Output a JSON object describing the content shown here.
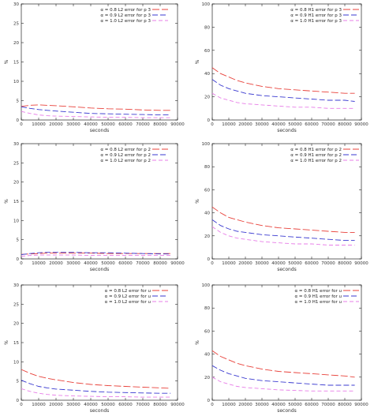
{
  "colors": {
    "red": "#e8413a",
    "blue": "#3a3ad0",
    "magenta": "#e77ce7"
  },
  "chart_data": [
    {
      "type": "line",
      "xlabel": "seconds",
      "ylabel": "%",
      "xlim": [
        0,
        90000
      ],
      "ylim": [
        0,
        30
      ],
      "xticks": [
        "0",
        "10000",
        "20000",
        "30000",
        "40000",
        "50000",
        "60000",
        "70000",
        "80000",
        "90000"
      ],
      "yticks": [
        "0",
        "5",
        "10",
        "15",
        "20",
        "25",
        "30"
      ],
      "legend_position": "top-right",
      "x": [
        0,
        5000,
        10000,
        15000,
        20000,
        30000,
        40000,
        50000,
        60000,
        70000,
        80000,
        86000
      ],
      "series": [
        {
          "name": "α = 0.8 L2 error for p 3",
          "color": "red",
          "values": [
            3.5,
            3.8,
            3.9,
            3.8,
            3.7,
            3.4,
            3.1,
            2.9,
            2.8,
            2.6,
            2.5,
            2.5
          ]
        },
        {
          "name": "α = 0.9 L2 error for p 3",
          "color": "blue",
          "values": [
            3.4,
            3.0,
            2.7,
            2.5,
            2.3,
            2.0,
            1.7,
            1.6,
            1.5,
            1.4,
            1.3,
            1.3
          ]
        },
        {
          "name": "α = 1.0 L2 error for p 3",
          "color": "magenta",
          "values": [
            2.2,
            1.7,
            1.3,
            1.1,
            1.0,
            0.9,
            0.8,
            0.7,
            0.7,
            0.6,
            0.6,
            0.6
          ]
        }
      ]
    },
    {
      "type": "line",
      "xlabel": "seconds",
      "ylabel": "%",
      "xlim": [
        0,
        90000
      ],
      "ylim": [
        0,
        100
      ],
      "xticks": [
        "0",
        "10000",
        "20000",
        "30000",
        "40000",
        "50000",
        "60000",
        "70000",
        "80000",
        "90000"
      ],
      "yticks": [
        "0",
        "20",
        "40",
        "60",
        "80",
        "100"
      ],
      "legend_position": "top-right",
      "x": [
        0,
        5000,
        10000,
        15000,
        20000,
        30000,
        40000,
        50000,
        60000,
        70000,
        80000,
        86000
      ],
      "series": [
        {
          "name": "α = 0.8 H1 error for p 3",
          "color": "red",
          "values": [
            45,
            40,
            37,
            34,
            32,
            29,
            27,
            26,
            25,
            24,
            23,
            23
          ]
        },
        {
          "name": "α = 0.9 H1 error for p 3",
          "color": "blue",
          "values": [
            35,
            30,
            27,
            25,
            23,
            21,
            20,
            19,
            18,
            17,
            17,
            16
          ]
        },
        {
          "name": "α = 1.0 H1 error for p 3",
          "color": "magenta",
          "values": [
            23,
            19,
            17,
            15,
            14,
            13,
            12,
            11,
            11,
            10,
            10,
            10
          ]
        }
      ]
    },
    {
      "type": "line",
      "xlabel": "seconds",
      "ylabel": "%",
      "xlim": [
        0,
        90000
      ],
      "ylim": [
        0,
        30
      ],
      "xticks": [
        "0",
        "10000",
        "20000",
        "30000",
        "40000",
        "50000",
        "60000",
        "70000",
        "80000",
        "90000"
      ],
      "yticks": [
        "0",
        "5",
        "10",
        "15",
        "20",
        "25",
        "30"
      ],
      "legend_position": "top-right",
      "x": [
        0,
        5000,
        10000,
        15000,
        20000,
        30000,
        40000,
        50000,
        60000,
        70000,
        80000,
        86000
      ],
      "series": [
        {
          "name": "α = 0.8 L2 error for p 2",
          "color": "red",
          "values": [
            1.2,
            1.3,
            1.4,
            1.5,
            1.5,
            1.5,
            1.5,
            1.4,
            1.4,
            1.4,
            1.4,
            1.4
          ]
        },
        {
          "name": "α = 0.9 L2 error for p 2",
          "color": "blue",
          "values": [
            1.1,
            1.4,
            1.6,
            1.7,
            1.7,
            1.7,
            1.6,
            1.6,
            1.5,
            1.4,
            1.3,
            1.3
          ]
        },
        {
          "name": "α = 1.0 L2 error for p 2",
          "color": "magenta",
          "values": [
            0.7,
            0.9,
            1.0,
            1.0,
            1.0,
            1.0,
            0.9,
            0.9,
            0.9,
            0.9,
            0.9,
            0.9
          ]
        }
      ]
    },
    {
      "type": "line",
      "xlabel": "seconds",
      "ylabel": "%",
      "xlim": [
        0,
        90000
      ],
      "ylim": [
        0,
        100
      ],
      "xticks": [
        "0",
        "10000",
        "20000",
        "30000",
        "40000",
        "50000",
        "60000",
        "70000",
        "80000",
        "90000"
      ],
      "yticks": [
        "0",
        "20",
        "40",
        "60",
        "80",
        "100"
      ],
      "legend_position": "top-right",
      "x": [
        0,
        5000,
        10000,
        15000,
        20000,
        30000,
        40000,
        50000,
        60000,
        70000,
        80000,
        86000
      ],
      "series": [
        {
          "name": "α = 0.8 H1 error for p 2",
          "color": "red",
          "values": [
            45,
            40,
            36,
            34,
            32,
            29,
            27,
            26,
            25,
            24,
            23,
            23
          ]
        },
        {
          "name": "α = 0.9 H1 error for p 2",
          "color": "blue",
          "values": [
            34,
            29,
            26,
            24,
            23,
            21,
            20,
            19,
            18,
            17,
            16,
            16
          ]
        },
        {
          "name": "α = 1.0 H1 error for p 2",
          "color": "magenta",
          "values": [
            28,
            23,
            20,
            18,
            17,
            15,
            14,
            13,
            13,
            12,
            12,
            12
          ]
        }
      ]
    },
    {
      "type": "line",
      "xlabel": "seconds",
      "ylabel": "%",
      "xlim": [
        0,
        90000
      ],
      "ylim": [
        0,
        30
      ],
      "xticks": [
        "0",
        "10000",
        "20000",
        "30000",
        "40000",
        "50000",
        "60000",
        "70000",
        "80000",
        "90000"
      ],
      "yticks": [
        "0",
        "5",
        "10",
        "15",
        "20",
        "25",
        "30"
      ],
      "legend_position": "top-right",
      "x": [
        0,
        5000,
        10000,
        15000,
        20000,
        30000,
        40000,
        50000,
        60000,
        70000,
        80000,
        86000
      ],
      "series": [
        {
          "name": "α = 0.8 L2 error for u",
          "color": "red",
          "values": [
            8.0,
            7.0,
            6.2,
            5.7,
            5.3,
            4.6,
            4.1,
            3.8,
            3.6,
            3.4,
            3.2,
            3.1
          ]
        },
        {
          "name": "α = 0.9 L2 error for u",
          "color": "blue",
          "values": [
            5.2,
            4.3,
            3.6,
            3.2,
            2.9,
            2.6,
            2.3,
            2.1,
            2.0,
            1.9,
            1.8,
            1.8
          ]
        },
        {
          "name": "α = 1.0 L2 error for u",
          "color": "magenta",
          "values": [
            3.0,
            2.3,
            1.8,
            1.5,
            1.3,
            1.1,
            1.0,
            0.9,
            0.9,
            0.8,
            0.8,
            0.8
          ]
        }
      ]
    },
    {
      "type": "line",
      "xlabel": "seconds",
      "ylabel": "%",
      "xlim": [
        0,
        90000
      ],
      "ylim": [
        0,
        100
      ],
      "xticks": [
        "0",
        "10000",
        "20000",
        "30000",
        "40000",
        "50000",
        "60000",
        "70000",
        "80000",
        "90000"
      ],
      "yticks": [
        "0",
        "20",
        "40",
        "60",
        "80",
        "100"
      ],
      "legend_position": "top-right",
      "x": [
        0,
        5000,
        10000,
        15000,
        20000,
        30000,
        40000,
        50000,
        60000,
        70000,
        80000,
        86000
      ],
      "series": [
        {
          "name": "α = 0.8 H1 error for u",
          "color": "red",
          "values": [
            43,
            38,
            35,
            32,
            30,
            27,
            25,
            24,
            23,
            22,
            21,
            20
          ]
        },
        {
          "name": "α = 0.9 H1 error for u",
          "color": "blue",
          "values": [
            30,
            26,
            23,
            21,
            19,
            17,
            16,
            15,
            14,
            13,
            13,
            13
          ]
        },
        {
          "name": "α = 1.0 H1 error for u",
          "color": "magenta",
          "values": [
            20,
            16,
            14,
            12,
            11,
            10,
            9,
            8.5,
            8,
            8,
            8,
            8
          ]
        }
      ]
    }
  ]
}
